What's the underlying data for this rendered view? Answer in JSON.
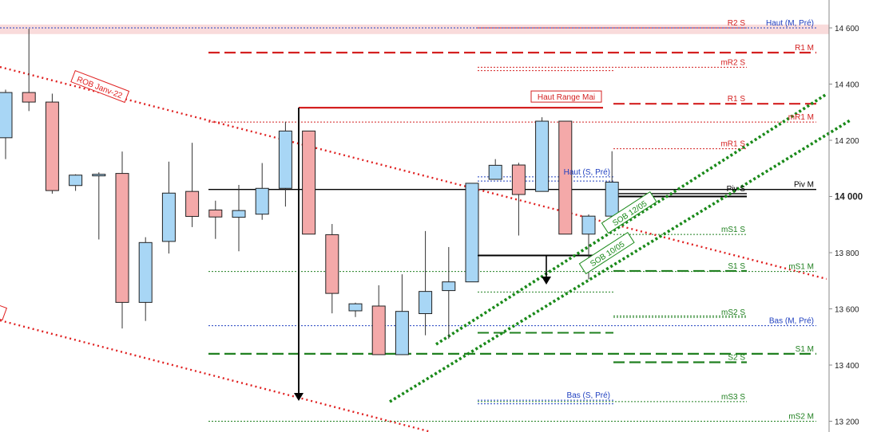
{
  "chart_data": {
    "type": "candlestick",
    "y_axis": {
      "ticks": [
        {
          "value": 14600,
          "label": "14 600",
          "bold": false
        },
        {
          "value": 14400,
          "label": "14 400",
          "bold": false
        },
        {
          "value": 14200,
          "label": "14 200",
          "bold": false
        },
        {
          "value": 14000,
          "label": "14 000",
          "bold": true
        },
        {
          "value": 13800,
          "label": "13 800",
          "bold": false
        },
        {
          "value": 13600,
          "label": "13 600",
          "bold": false
        },
        {
          "value": 13400,
          "label": "13 400",
          "bold": false
        },
        {
          "value": 13200,
          "label": "13 200",
          "bold": false
        }
      ],
      "range": [
        13175,
        14690
      ],
      "position": "right"
    },
    "candles": [
      {
        "i": 0,
        "o": 14209,
        "h": 14380,
        "l": 14133,
        "c": 14370
      },
      {
        "i": 1,
        "o": 14370,
        "h": 14597,
        "l": 14304,
        "c": 14336
      },
      {
        "i": 2,
        "o": 14336,
        "h": 14366,
        "l": 14010,
        "c": 14021
      },
      {
        "i": 3,
        "o": 14039,
        "h": 14079,
        "l": 14020,
        "c": 14076
      },
      {
        "i": 4,
        "o": 14079,
        "h": 14086,
        "l": 13847,
        "c": 14079
      },
      {
        "i": 5,
        "o": 14082,
        "h": 14160,
        "l": 13530,
        "c": 13623
      },
      {
        "i": 6,
        "o": 13623,
        "h": 13855,
        "l": 13557,
        "c": 13836
      },
      {
        "i": 7,
        "o": 13840,
        "h": 14124,
        "l": 13797,
        "c": 14012
      },
      {
        "i": 8,
        "o": 14018,
        "h": 14191,
        "l": 13891,
        "c": 13929
      },
      {
        "i": 9,
        "o": 13952,
        "h": 13985,
        "l": 13849,
        "c": 13927
      },
      {
        "i": 10,
        "o": 13926,
        "h": 14041,
        "l": 13805,
        "c": 13950
      },
      {
        "i": 11,
        "o": 13937,
        "h": 14119,
        "l": 13917,
        "c": 14029
      },
      {
        "i": 12,
        "o": 14029,
        "h": 14266,
        "l": 13964,
        "c": 14233
      },
      {
        "i": 13,
        "o": 14233,
        "h": 14233,
        "l": 13866,
        "c": 13866
      },
      {
        "i": 14,
        "o": 13864,
        "h": 13902,
        "l": 13584,
        "c": 13655
      },
      {
        "i": 15,
        "o": 13593,
        "h": 13622,
        "l": 13571,
        "c": 13618
      },
      {
        "i": 16,
        "o": 13610,
        "h": 13684,
        "l": 13437,
        "c": 13437
      },
      {
        "i": 17,
        "o": 13437,
        "h": 13723,
        "l": 13436,
        "c": 13591
      },
      {
        "i": 18,
        "o": 13583,
        "h": 13877,
        "l": 13506,
        "c": 13662
      },
      {
        "i": 19,
        "o": 13665,
        "h": 13820,
        "l": 13493,
        "c": 13696
      },
      {
        "i": 20,
        "o": 13696,
        "h": 14046,
        "l": 13696,
        "c": 14047
      },
      {
        "i": 21,
        "o": 14061,
        "h": 14133,
        "l": 14061,
        "c": 14111
      },
      {
        "i": 22,
        "o": 14112,
        "h": 14120,
        "l": 13861,
        "c": 14007
      },
      {
        "i": 23,
        "o": 14018,
        "h": 14282,
        "l": 14018,
        "c": 14268
      },
      {
        "i": 24,
        "o": 14268,
        "h": 14268,
        "l": 13866,
        "c": 13866
      },
      {
        "i": 25,
        "o": 13866,
        "h": 13936,
        "l": 13705,
        "c": 13930
      },
      {
        "i": 26,
        "o": 13930,
        "h": 14161,
        "l": 13879,
        "c": 14051
      }
    ],
    "horizontal_levels": [
      {
        "label": "R2 S",
        "value": 14600,
        "color": "#d42020",
        "style": "dotted",
        "label_pos": "mid"
      },
      {
        "label": "Haut (M, Pré)",
        "value": 14600,
        "color": "#2040c0",
        "style": "dotted",
        "label_pos": "right"
      },
      {
        "label": "R1 M",
        "value": 14512,
        "color": "#d42020",
        "style": "dashed",
        "label_pos": "right"
      },
      {
        "label": "mR2 S",
        "value": 14460,
        "color": "#d42020",
        "style": "dotted",
        "label_pos": "mid"
      },
      {
        "label": "Haut Range Mai",
        "value": 14316,
        "color": "#d42020",
        "style": "solid",
        "label_pos": "box"
      },
      {
        "label": "R1 S",
        "value": 14330,
        "color": "#d42020",
        "style": "dashed",
        "label_pos": "mid"
      },
      {
        "label": "mR1 M",
        "value": 14265,
        "color": "#d42020",
        "style": "dotted",
        "label_pos": "right"
      },
      {
        "label": "mR1 S",
        "value": 14170,
        "color": "#d42020",
        "style": "dotted",
        "label_pos": "mid"
      },
      {
        "label": "Haut (S, Pré)",
        "value": 14070,
        "color": "#2040c0",
        "style": "dotted",
        "label_pos": "mid"
      },
      {
        "label": "Piv M",
        "value": 14025,
        "color": "#000000",
        "style": "solid",
        "label_pos": "right"
      },
      {
        "label": "Piv S",
        "value": 14010,
        "color": "#000000",
        "style": "solid",
        "label_pos": "mid"
      },
      {
        "label": "mS1 S",
        "value": 13865,
        "color": "#208020",
        "style": "dotted",
        "label_pos": "mid"
      },
      {
        "label": "S1 S",
        "value": 13735,
        "color": "#208020",
        "style": "dashed",
        "label_pos": "mid"
      },
      {
        "label": "mS1 M",
        "value": 13733,
        "color": "#208020",
        "style": "dotted",
        "label_pos": "right"
      },
      {
        "label": "mS2 S",
        "value": 13570,
        "color": "#208020",
        "style": "dotted",
        "label_pos": "mid"
      },
      {
        "label": "Bas (M, Pré)",
        "value": 13540,
        "color": "#2040c0",
        "style": "dotted",
        "label_pos": "right"
      },
      {
        "label": "S1 M",
        "value": 13440,
        "color": "#208020",
        "style": "dashed",
        "label_pos": "right"
      },
      {
        "label": "S2 S",
        "value": 13410,
        "color": "#208020",
        "style": "dashed",
        "label_pos": "mid"
      },
      {
        "label": "Bas (S, Pré)",
        "value": 13275,
        "color": "#2040c0",
        "style": "dotted",
        "label_pos": "mid"
      },
      {
        "label": "mS3 S",
        "value": 13270,
        "color": "#208020",
        "style": "dotted",
        "label_pos": "mid"
      },
      {
        "label": "mS2 M",
        "value": 13200,
        "color": "#208020",
        "style": "dotted",
        "label_pos": "right"
      }
    ],
    "trendlines": [
      {
        "label": "ROB Janv-22",
        "color": "#e02020",
        "style": "dotted"
      },
      {
        "label": "SOB 12/05",
        "color": "#1a8a1a",
        "style": "dotted"
      },
      {
        "label": "SOB 10/05",
        "color": "#1a8a1a",
        "style": "dotted"
      }
    ]
  }
}
